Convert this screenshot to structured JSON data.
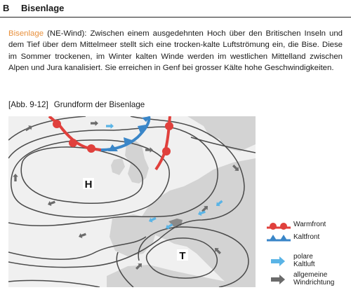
{
  "section": {
    "letter": "B",
    "title": "Bisenlage"
  },
  "intro": {
    "keyword": "Bisenlage",
    "text": " (NE-Wind): Zwischen einem ausgedehnten Hoch über den Britischen Inseln und dem Tief über dem Mittelmeer stellt sich eine trocken-kalte Luftströmung ein, die Bise. Diese im Sommer trockenen, im Winter kalten Winde werden im westlichen Mittelland zwischen Alpen und Jura kanalisiert. Sie erreichen in Genf bei grosser Kälte hohe Geschwindigkeiten."
  },
  "figure": {
    "label": "[Abb. 9-12]",
    "caption": "Grundform der Bisenlage",
    "map": {
      "high_label": "H",
      "low_label": "T"
    }
  },
  "legend": {
    "warmfront": "Warmfront",
    "kaltfront": "Kaltfront",
    "polar_line1": "polare",
    "polar_line2": "Kaltluft",
    "general_line1": "allgemeine",
    "general_line2": "Windrichtung"
  },
  "colors": {
    "warmfront": "#e0403c",
    "kaltfront": "#3a86c8",
    "polar_air": "#5ab4e6",
    "general_wind": "#6b6b6b",
    "land": "#d3d3d3",
    "sea": "#f0f0f0",
    "keyword": "#e8903c"
  }
}
